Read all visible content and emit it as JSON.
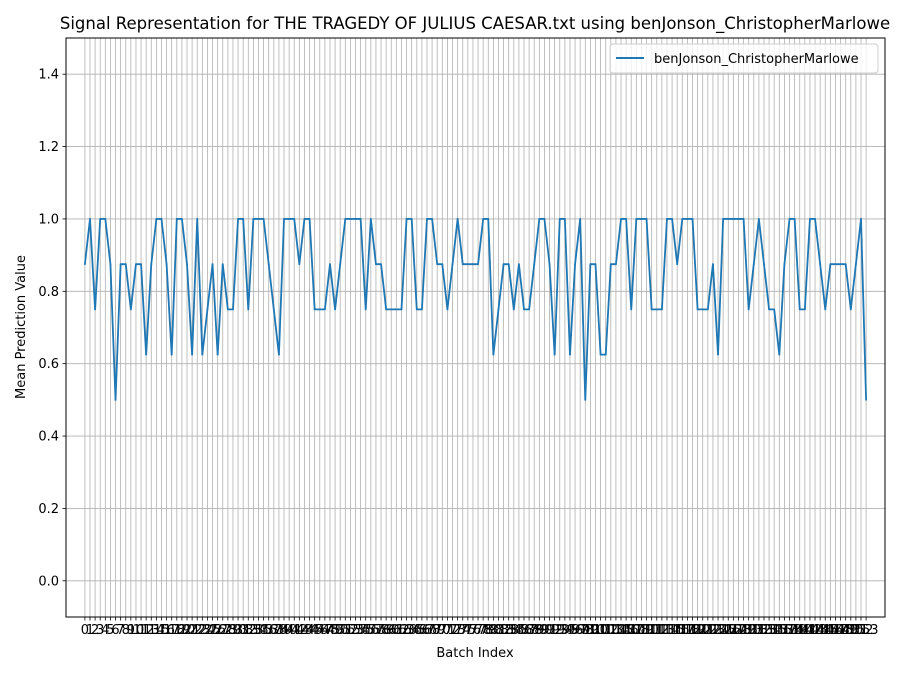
{
  "chart_data": {
    "type": "line",
    "title": "Signal Representation for THE TRAGEDY OF JULIUS CAESAR.txt using benJonson_ChristopherMarlowe",
    "xlabel": "Batch Index",
    "ylabel": "Mean Prediction Value",
    "xlim": [
      -3.7,
      156.7
    ],
    "ylim": [
      -0.1,
      1.5
    ],
    "yticks": [
      0.0,
      0.2,
      0.4,
      0.6,
      0.8,
      1.0,
      1.2,
      1.4
    ],
    "ytick_labels": [
      "0.0",
      "0.2",
      "0.4",
      "0.6",
      "0.8",
      "1.0",
      "1.2",
      "1.4"
    ],
    "xticks_start": 0,
    "xticks_end": 153,
    "grid": true,
    "legend_position": "top-right",
    "series": [
      {
        "name": "benJonson_ChristopherMarlowe",
        "color": "#1f77b4",
        "x_start": 0,
        "values": [
          0.875,
          1.0,
          0.75,
          1.0,
          1.0,
          0.875,
          0.5,
          0.875,
          0.875,
          0.75,
          0.875,
          0.875,
          0.625,
          0.875,
          1.0,
          1.0,
          0.875,
          0.625,
          1.0,
          1.0,
          0.875,
          0.625,
          1.0,
          0.625,
          0.75,
          0.875,
          0.625,
          0.875,
          0.75,
          0.75,
          1.0,
          1.0,
          0.75,
          1.0,
          1.0,
          1.0,
          0.875,
          0.75,
          0.625,
          1.0,
          1.0,
          1.0,
          0.875,
          1.0,
          1.0,
          0.75,
          0.75,
          0.75,
          0.875,
          0.75,
          0.875,
          1.0,
          1.0,
          1.0,
          1.0,
          0.75,
          1.0,
          0.875,
          0.875,
          0.75,
          0.75,
          0.75,
          0.75,
          1.0,
          1.0,
          0.75,
          0.75,
          1.0,
          1.0,
          0.875,
          0.875,
          0.75,
          0.875,
          1.0,
          0.875,
          0.875,
          0.875,
          0.875,
          1.0,
          1.0,
          0.625,
          0.75,
          0.875,
          0.875,
          0.75,
          0.875,
          0.75,
          0.75,
          0.875,
          1.0,
          1.0,
          0.875,
          0.625,
          1.0,
          1.0,
          0.625,
          0.875,
          1.0,
          0.5,
          0.875,
          0.875,
          0.625,
          0.625,
          0.875,
          0.875,
          1.0,
          1.0,
          0.75,
          1.0,
          1.0,
          1.0,
          0.75,
          0.75,
          0.75,
          1.0,
          1.0,
          0.875,
          1.0,
          1.0,
          1.0,
          0.75,
          0.75,
          0.75,
          0.875,
          0.625,
          1.0,
          1.0,
          1.0,
          1.0,
          1.0,
          0.75,
          0.875,
          1.0,
          0.875,
          0.75,
          0.75,
          0.625,
          0.875,
          1.0,
          1.0,
          0.75,
          0.75,
          1.0,
          1.0,
          0.875,
          0.75,
          0.875,
          0.875,
          0.875,
          0.875,
          0.75,
          0.875,
          1.0,
          0.5
        ]
      }
    ]
  }
}
